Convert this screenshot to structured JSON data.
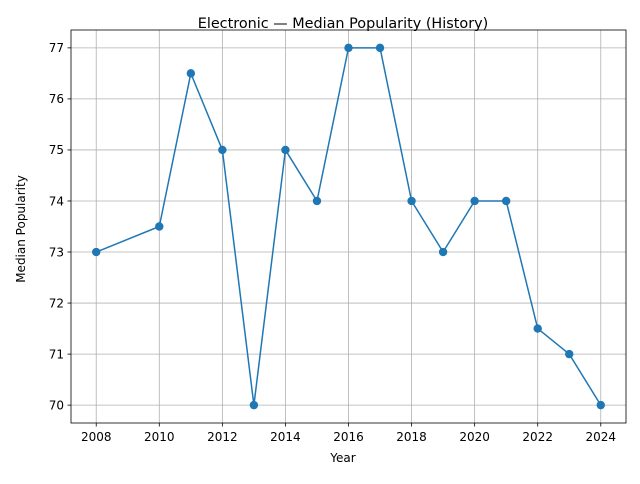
{
  "chart_data": {
    "type": "line",
    "title": "Electronic — Median Popularity (History)",
    "xlabel": "Year",
    "ylabel": "Median Popularity",
    "x": [
      2008,
      2010,
      2011,
      2012,
      2013,
      2014,
      2015,
      2016,
      2017,
      2018,
      2019,
      2020,
      2021,
      2022,
      2023,
      2024
    ],
    "series": [
      {
        "values": [
          73,
          73.5,
          76.5,
          75,
          70,
          75,
          74,
          77,
          77,
          74,
          73,
          74,
          74,
          71.5,
          71,
          70
        ]
      }
    ],
    "x_ticks": [
      2008,
      2010,
      2012,
      2014,
      2016,
      2018,
      2020,
      2022,
      2024
    ],
    "y_ticks": [
      70,
      71,
      72,
      73,
      74,
      75,
      76,
      77
    ],
    "xlim": [
      2007.2,
      2024.8
    ],
    "ylim": [
      69.65,
      77.35
    ],
    "grid": true,
    "color": "#1f77b4",
    "marker": "circle"
  }
}
